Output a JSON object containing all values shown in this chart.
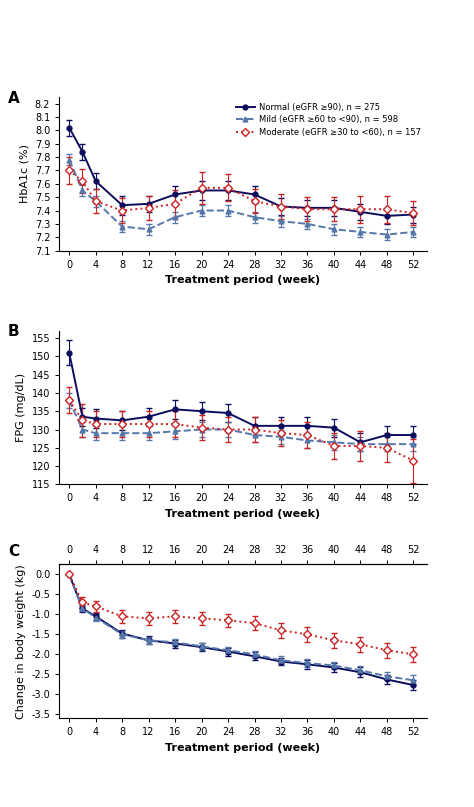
{
  "weeks": [
    0,
    2,
    4,
    8,
    12,
    16,
    20,
    24,
    28,
    32,
    36,
    40,
    44,
    48,
    52
  ],
  "hba1c_normal": [
    8.02,
    7.84,
    7.62,
    7.44,
    7.45,
    7.52,
    7.55,
    7.55,
    7.52,
    7.43,
    7.42,
    7.42,
    7.39,
    7.36,
    7.37
  ],
  "hba1c_normal_err": [
    0.06,
    0.06,
    0.06,
    0.07,
    0.06,
    0.06,
    0.07,
    0.07,
    0.06,
    0.06,
    0.06,
    0.06,
    0.06,
    0.06,
    0.06
  ],
  "hba1c_mild": [
    7.78,
    7.55,
    7.47,
    7.28,
    7.26,
    7.35,
    7.4,
    7.4,
    7.35,
    7.32,
    7.3,
    7.26,
    7.24,
    7.22,
    7.24
  ],
  "hba1c_mild_err": [
    0.04,
    0.04,
    0.04,
    0.04,
    0.04,
    0.04,
    0.04,
    0.04,
    0.04,
    0.04,
    0.04,
    0.04,
    0.04,
    0.04,
    0.04
  ],
  "hba1c_moderate": [
    7.7,
    7.62,
    7.47,
    7.4,
    7.42,
    7.45,
    7.57,
    7.57,
    7.47,
    7.43,
    7.41,
    7.41,
    7.41,
    7.41,
    7.38
  ],
  "hba1c_moderate_err": [
    0.1,
    0.09,
    0.09,
    0.09,
    0.09,
    0.1,
    0.12,
    0.1,
    0.09,
    0.09,
    0.09,
    0.09,
    0.1,
    0.1,
    0.09
  ],
  "fpg_weeks": [
    0,
    2,
    4,
    8,
    12,
    16,
    20,
    24,
    28,
    32,
    36,
    40,
    44,
    48,
    52
  ],
  "fpg_normal": [
    151.0,
    133.5,
    133.0,
    132.5,
    133.5,
    135.5,
    135.0,
    134.5,
    131.0,
    131.0,
    131.0,
    130.5,
    126.5,
    128.5,
    128.5
  ],
  "fpg_normal_err": [
    3.5,
    2.5,
    2.5,
    2.5,
    2.5,
    2.5,
    2.5,
    2.5,
    2.5,
    2.5,
    2.5,
    2.5,
    2.5,
    2.5,
    2.5
  ],
  "fpg_mild": [
    138.0,
    130.0,
    129.0,
    129.0,
    129.0,
    129.5,
    130.0,
    130.0,
    128.5,
    128.0,
    127.0,
    126.5,
    126.0,
    126.0,
    126.0
  ],
  "fpg_mild_err": [
    2.0,
    2.0,
    2.0,
    2.0,
    2.0,
    2.0,
    2.0,
    2.0,
    2.0,
    2.0,
    2.0,
    2.0,
    2.0,
    2.0,
    2.0
  ],
  "fpg_moderate": [
    138.0,
    132.5,
    131.5,
    131.5,
    131.5,
    131.5,
    130.5,
    130.0,
    130.0,
    129.0,
    128.5,
    125.5,
    125.5,
    125.0,
    121.5
  ],
  "fpg_moderate_err": [
    3.5,
    4.5,
    3.5,
    3.5,
    3.5,
    3.5,
    3.5,
    3.5,
    3.5,
    3.5,
    3.5,
    3.5,
    4.0,
    4.0,
    6.0
  ],
  "bw_weeks": [
    0,
    2,
    4,
    8,
    12,
    16,
    20,
    24,
    28,
    32,
    36,
    40,
    44,
    48,
    52
  ],
  "bw_normal": [
    0.0,
    -0.85,
    -1.05,
    -1.48,
    -1.65,
    -1.73,
    -1.82,
    -1.93,
    -2.05,
    -2.18,
    -2.25,
    -2.33,
    -2.45,
    -2.63,
    -2.77
  ],
  "bw_normal_err": [
    0.0,
    0.08,
    0.08,
    0.1,
    0.1,
    0.1,
    0.1,
    0.1,
    0.1,
    0.1,
    0.12,
    0.12,
    0.12,
    0.12,
    0.13
  ],
  "bw_mild": [
    0.0,
    -0.85,
    -1.08,
    -1.5,
    -1.65,
    -1.7,
    -1.8,
    -1.9,
    -2.0,
    -2.15,
    -2.22,
    -2.28,
    -2.4,
    -2.55,
    -2.65
  ],
  "bw_mild_err": [
    0.0,
    0.07,
    0.08,
    0.09,
    0.09,
    0.09,
    0.09,
    0.09,
    0.09,
    0.1,
    0.1,
    0.1,
    0.1,
    0.1,
    0.12
  ],
  "bw_moderate": [
    0.0,
    -0.7,
    -0.8,
    -1.05,
    -1.1,
    -1.05,
    -1.1,
    -1.15,
    -1.22,
    -1.4,
    -1.5,
    -1.65,
    -1.75,
    -1.9,
    -2.0
  ],
  "bw_moderate_err": [
    0.0,
    0.13,
    0.14,
    0.16,
    0.16,
    0.16,
    0.16,
    0.16,
    0.18,
    0.18,
    0.18,
    0.18,
    0.18,
    0.18,
    0.18
  ],
  "color_normal": "#0d0d5e",
  "color_mild": "#5577aa",
  "color_moderate": "#cc2222",
  "legend_labels": [
    "Normal (eGFR ≥90), n = 275",
    "Mild (eGFR ≥60 to <90), n = 598",
    "Moderate (eGFR ≥30 to <60), n = 157"
  ],
  "panel_labels": [
    "A",
    "B",
    "C"
  ],
  "ylabels": [
    "HbA1c (%)",
    "FPG (mg/dL)",
    "Change in body weight (kg)"
  ],
  "xlabel": "Treatment period (week)",
  "ylim_A": [
    7.1,
    8.25
  ],
  "yticks_A": [
    7.1,
    7.2,
    7.3,
    7.4,
    7.5,
    7.6,
    7.7,
    7.8,
    7.9,
    8.0,
    8.1,
    8.2
  ],
  "ylim_B": [
    115,
    157
  ],
  "yticks_B": [
    115,
    120,
    125,
    130,
    135,
    140,
    145,
    150,
    155
  ],
  "ylim_C": [
    -3.6,
    0.25
  ],
  "yticks_C": [
    0.0,
    -0.5,
    -1.0,
    -1.5,
    -2.0,
    -2.5,
    -3.0,
    -3.5
  ],
  "xticks": [
    0,
    4,
    8,
    12,
    16,
    20,
    24,
    28,
    32,
    36,
    40,
    44,
    48,
    52
  ]
}
